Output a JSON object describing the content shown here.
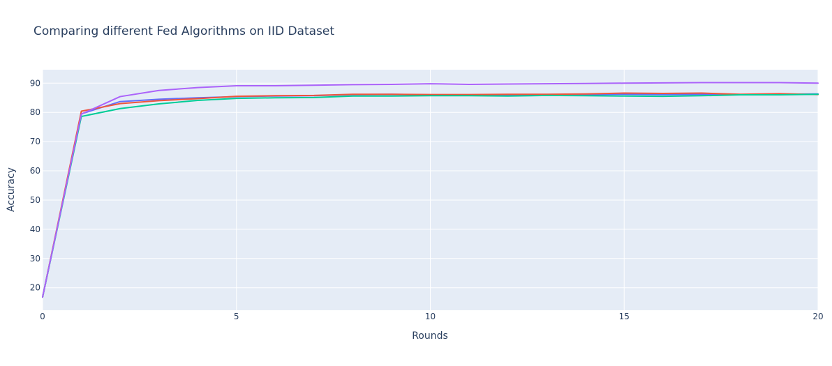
{
  "chart_data": {
    "type": "line",
    "title": "Comparing different Fed Algorithms on IID Dataset",
    "xlabel": "Rounds",
    "ylabel": "Accuracy",
    "xlim": [
      0,
      20
    ],
    "ylim": [
      12.3,
      94.6
    ],
    "xticks": [
      0,
      5,
      10,
      15,
      20
    ],
    "yticks": [
      20,
      30,
      40,
      50,
      60,
      70,
      80,
      90
    ],
    "grid": true,
    "legend": "none",
    "plot_background": "#e5ecf6",
    "x": [
      0,
      1,
      2,
      3,
      4,
      5,
      6,
      7,
      8,
      9,
      10,
      11,
      12,
      13,
      14,
      15,
      16,
      17,
      18,
      19,
      20
    ],
    "series": [
      {
        "color": "#636efa",
        "values": [
          16.8,
          79.5,
          83.7,
          84.5,
          85.0,
          85.4,
          85.6,
          85.7,
          86.1,
          86.2,
          86.0,
          86.0,
          86.0,
          86.0,
          86.1,
          86.2,
          86.1,
          86.2,
          86.1,
          86.2,
          86.3
        ]
      },
      {
        "color": "#ef553b",
        "values": [
          16.8,
          80.4,
          83.0,
          84.0,
          84.7,
          85.5,
          85.7,
          85.8,
          86.2,
          86.2,
          86.1,
          86.1,
          86.2,
          86.2,
          86.3,
          86.6,
          86.5,
          86.6,
          86.2,
          86.4,
          86.1
        ]
      },
      {
        "color": "#00cc96",
        "values": [
          16.8,
          78.6,
          81.3,
          82.9,
          84.1,
          84.8,
          85.0,
          85.1,
          85.6,
          85.6,
          85.7,
          85.7,
          85.6,
          85.8,
          85.7,
          85.6,
          85.5,
          85.7,
          86.0,
          86.0,
          86.2
        ]
      },
      {
        "color": "#ab63fa",
        "values": [
          16.8,
          79.4,
          85.4,
          87.5,
          88.5,
          89.1,
          89.1,
          89.3,
          89.5,
          89.6,
          89.8,
          89.6,
          89.7,
          89.8,
          89.9,
          90.0,
          90.1,
          90.2,
          90.2,
          90.2,
          90.0
        ]
      }
    ]
  }
}
